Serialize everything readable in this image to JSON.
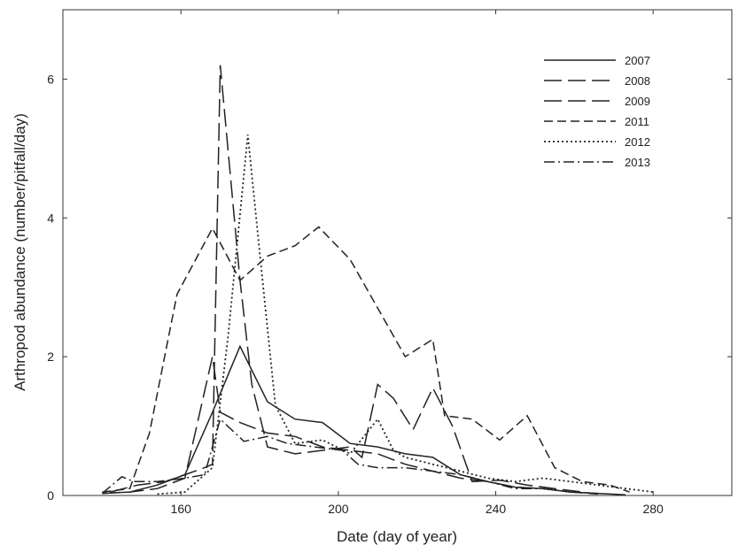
{
  "chart_data": {
    "type": "line",
    "xlabel": "Date (day of year)",
    "ylabel": "Arthropod abundance (number/pitfall/day)",
    "xlim": [
      130,
      300
    ],
    "ylim": [
      0,
      7
    ],
    "xticks": [
      160,
      200,
      240,
      280
    ],
    "yticks": [
      0,
      2,
      4,
      6
    ],
    "grid": false,
    "legend_position": "top-right",
    "series": [
      {
        "name": "2007",
        "dash": "solid",
        "points": [
          [
            140,
            0.03
          ],
          [
            147,
            0.05
          ],
          [
            154,
            0.15
          ],
          [
            161,
            0.3
          ],
          [
            168,
            1.2
          ],
          [
            175,
            2.15
          ],
          [
            182,
            1.35
          ],
          [
            189,
            1.1
          ],
          [
            196,
            1.05
          ],
          [
            203,
            0.75
          ],
          [
            210,
            0.7
          ],
          [
            217,
            0.6
          ],
          [
            224,
            0.55
          ],
          [
            231,
            0.3
          ],
          [
            238,
            0.2
          ],
          [
            245,
            0.12
          ],
          [
            252,
            0.1
          ],
          [
            259,
            0.05
          ],
          [
            266,
            0.03
          ],
          [
            273,
            0.01
          ]
        ]
      },
      {
        "name": "2008",
        "dash": "long-dash",
        "points": [
          [
            140,
            0.03
          ],
          [
            147,
            0.05
          ],
          [
            154,
            0.1
          ],
          [
            161,
            0.25
          ],
          [
            168,
            2.0
          ],
          [
            170,
            1.2
          ],
          [
            175,
            1.05
          ],
          [
            182,
            0.9
          ],
          [
            189,
            0.85
          ],
          [
            196,
            0.7
          ],
          [
            203,
            0.65
          ],
          [
            210,
            0.6
          ],
          [
            217,
            0.45
          ],
          [
            224,
            0.35
          ],
          [
            231,
            0.25
          ],
          [
            238,
            0.2
          ],
          [
            245,
            0.12
          ],
          [
            252,
            0.1
          ],
          [
            259,
            0.05
          ],
          [
            266,
            0.02
          ]
        ]
      },
      {
        "name": "2009",
        "dash": "long-dash",
        "points": [
          [
            142,
            0.05
          ],
          [
            149,
            0.15
          ],
          [
            156,
            0.2
          ],
          [
            161,
            0.3
          ],
          [
            166,
            0.4
          ],
          [
            168,
            0.45
          ],
          [
            170,
            6.2
          ],
          [
            175,
            3.1
          ],
          [
            178,
            1.6
          ],
          [
            182,
            0.7
          ],
          [
            189,
            0.6
          ],
          [
            196,
            0.65
          ],
          [
            203,
            0.7
          ],
          [
            206,
            0.55
          ],
          [
            210,
            1.6
          ],
          [
            214,
            1.4
          ],
          [
            219,
            0.95
          ],
          [
            224,
            1.55
          ],
          [
            229,
            1.0
          ],
          [
            234,
            0.2
          ],
          [
            241,
            0.22
          ],
          [
            248,
            0.15
          ],
          [
            255,
            0.1
          ],
          [
            262,
            0.05
          ]
        ]
      },
      {
        "name": "2011",
        "dash": "dash",
        "points": [
          [
            140,
            0.05
          ],
          [
            147,
            0.1
          ],
          [
            152,
            0.9
          ],
          [
            159,
            2.9
          ],
          [
            168,
            3.85
          ],
          [
            175,
            3.1
          ],
          [
            182,
            3.45
          ],
          [
            189,
            3.6
          ],
          [
            195,
            3.87
          ],
          [
            203,
            3.4
          ],
          [
            210,
            2.7
          ],
          [
            217,
            2.0
          ],
          [
            224,
            2.25
          ],
          [
            227,
            1.15
          ],
          [
            234,
            1.1
          ],
          [
            241,
            0.8
          ],
          [
            248,
            1.15
          ],
          [
            255,
            0.4
          ],
          [
            262,
            0.2
          ],
          [
            269,
            0.15
          ],
          [
            274,
            0.05
          ]
        ]
      },
      {
        "name": "2012",
        "dash": "dotted",
        "points": [
          [
            154,
            0.02
          ],
          [
            161,
            0.05
          ],
          [
            168,
            0.4
          ],
          [
            172,
            2.3
          ],
          [
            177,
            5.2
          ],
          [
            180,
            3.5
          ],
          [
            184,
            1.3
          ],
          [
            189,
            0.75
          ],
          [
            196,
            0.8
          ],
          [
            203,
            0.6
          ],
          [
            210,
            1.1
          ],
          [
            214,
            0.65
          ],
          [
            217,
            0.55
          ],
          [
            224,
            0.45
          ],
          [
            231,
            0.35
          ],
          [
            238,
            0.25
          ],
          [
            245,
            0.2
          ],
          [
            252,
            0.25
          ],
          [
            259,
            0.2
          ],
          [
            266,
            0.15
          ],
          [
            273,
            0.1
          ],
          [
            280,
            0.05
          ]
        ]
      },
      {
        "name": "2013",
        "dash": "dash-dot",
        "points": [
          [
            140,
            0.03
          ],
          [
            145,
            0.27
          ],
          [
            148,
            0.2
          ],
          [
            154,
            0.2
          ],
          [
            161,
            0.25
          ],
          [
            166,
            0.3
          ],
          [
            170,
            1.1
          ],
          [
            176,
            0.78
          ],
          [
            182,
            0.85
          ],
          [
            187,
            0.75
          ],
          [
            194,
            0.7
          ],
          [
            201,
            0.65
          ],
          [
            205,
            0.45
          ],
          [
            210,
            0.4
          ],
          [
            217,
            0.4
          ],
          [
            224,
            0.35
          ],
          [
            231,
            0.3
          ],
          [
            238,
            0.2
          ],
          [
            245,
            0.1
          ],
          [
            252,
            0.1
          ],
          [
            259,
            0.05
          ],
          [
            266,
            0.03
          ]
        ]
      }
    ]
  },
  "colors": {
    "line": "#222222",
    "axis": "#333333",
    "background": "#ffffff"
  }
}
